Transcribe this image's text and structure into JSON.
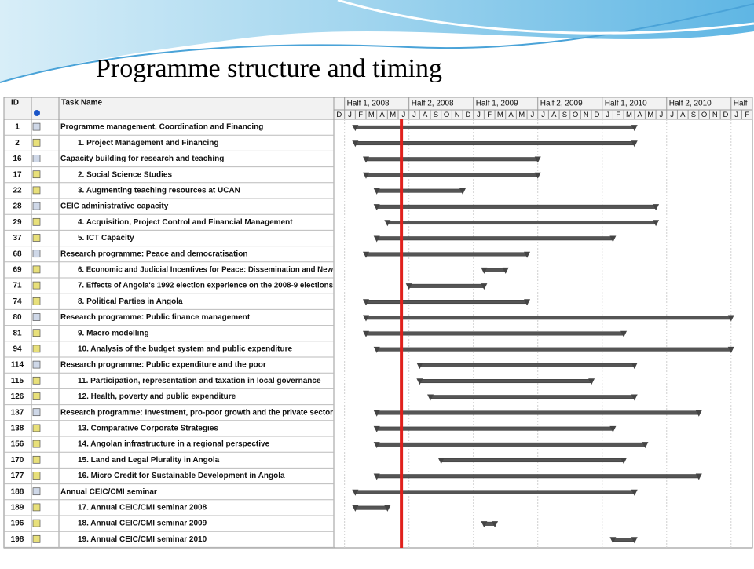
{
  "chart_data": {
    "type": "gantt",
    "title": "Programme structure  and timing",
    "columns": [
      "ID",
      "Task Name"
    ],
    "timescale": {
      "halves": [
        "Half 1, 2008",
        "Half 2, 2008",
        "Half 1, 2009",
        "Half 2, 2009",
        "Half 1, 2010",
        "Half 2, 2010",
        "Half"
      ],
      "half_starts": [
        "2008-01",
        "2008-07",
        "2009-01",
        "2009-07",
        "2010-01",
        "2010-07",
        "2011-01"
      ],
      "months": [
        "D",
        "J",
        "F",
        "M",
        "A",
        "M",
        "J",
        "J",
        "A",
        "S",
        "O",
        "N",
        "D",
        "J",
        "F",
        "M",
        "A",
        "M",
        "J",
        "J",
        "A",
        "S",
        "O",
        "N",
        "D",
        "J",
        "F",
        "M",
        "A",
        "M",
        "J",
        "J",
        "A",
        "S",
        "O",
        "N",
        "D",
        "J",
        "F"
      ],
      "first_month": "2007-12"
    },
    "status_date": "2008-06",
    "tasks": [
      {
        "id": "1",
        "name": "Programme management, Coordination and Financing",
        "start": "2008-02",
        "end": "2010-03"
      },
      {
        "id": "2",
        "name": "1. Project Management and Financing",
        "start": "2008-02",
        "end": "2010-03"
      },
      {
        "id": "16",
        "name": "Capacity building for research and teaching",
        "start": "2008-03",
        "end": "2009-06"
      },
      {
        "id": "17",
        "name": "2. Social Science Studies",
        "start": "2008-03",
        "end": "2009-06"
      },
      {
        "id": "22",
        "name": "3. Augmenting teaching resources at UCAN",
        "start": "2008-04",
        "end": "2008-11"
      },
      {
        "id": "28",
        "name": "CEIC administrative capacity",
        "start": "2008-04",
        "end": "2010-05"
      },
      {
        "id": "29",
        "name": "4. Acquisition, Project Control and Financial Management",
        "start": "2008-05",
        "end": "2010-05"
      },
      {
        "id": "37",
        "name": "5. ICT Capacity",
        "start": "2008-04",
        "end": "2010-01"
      },
      {
        "id": "68",
        "name": "Research programme: Peace and democratisation",
        "start": "2008-03",
        "end": "2009-05"
      },
      {
        "id": "69",
        "name": "6. Economic and Judicial Incentives for Peace: Dissemination and New",
        "start": "2009-02",
        "end": "2009-03"
      },
      {
        "id": "71",
        "name": "7. Effects of Angola's 1992 election experience on the 2008-9 elections",
        "start": "2008-07",
        "end": "2009-01"
      },
      {
        "id": "74",
        "name": "8. Political Parties in Angola",
        "start": "2008-03",
        "end": "2009-05"
      },
      {
        "id": "80",
        "name": "Research programme: Public finance management",
        "start": "2008-03",
        "end": "2010-12"
      },
      {
        "id": "81",
        "name": "9. Macro modelling",
        "start": "2008-03",
        "end": "2010-02"
      },
      {
        "id": "94",
        "name": "10. Analysis of the budget system and public expenditure",
        "start": "2008-04",
        "end": "2010-12"
      },
      {
        "id": "114",
        "name": "Research programme: Public expenditure and the poor",
        "start": "2008-08",
        "end": "2010-03"
      },
      {
        "id": "115",
        "name": "11. Participation, representation and taxation in local governance",
        "start": "2008-08",
        "end": "2009-11"
      },
      {
        "id": "126",
        "name": "12. Health, poverty and public expenditure",
        "start": "2008-09",
        "end": "2010-03"
      },
      {
        "id": "137",
        "name": "Research programme: Investment, pro-poor growth and the private sector",
        "start": "2008-04",
        "end": "2010-09"
      },
      {
        "id": "138",
        "name": "13. Comparative Corporate Strategies",
        "start": "2008-04",
        "end": "2010-01"
      },
      {
        "id": "156",
        "name": "14. Angolan infrastructure in a regional perspective",
        "start": "2008-04",
        "end": "2010-04"
      },
      {
        "id": "170",
        "name": "15. Land and Legal Plurality in Angola",
        "start": "2008-10",
        "end": "2010-02"
      },
      {
        "id": "177",
        "name": "16. Micro Credit for Sustainable Development in Angola",
        "start": "2008-04",
        "end": "2010-09"
      },
      {
        "id": "188",
        "name": "Annual CEIC/CMI seminar",
        "start": "2008-02",
        "end": "2010-03"
      },
      {
        "id": "189",
        "name": "17. Annual CEIC/CMI seminar 2008",
        "start": "2008-02",
        "end": "2008-04"
      },
      {
        "id": "196",
        "name": "18. Annual CEIC/CMI seminar 2009",
        "start": "2009-02",
        "end": "2009-02"
      },
      {
        "id": "198",
        "name": "19. Annual CEIC/CMI seminar 2010",
        "start": "2010-02",
        "end": "2010-03"
      }
    ]
  }
}
